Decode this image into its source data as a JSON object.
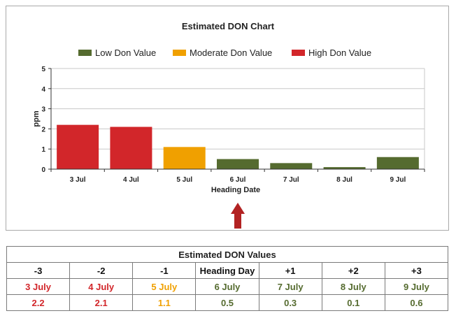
{
  "colors": {
    "low": "#556b2f",
    "moderate": "#f0a000",
    "high": "#d2262a",
    "arrow": "#b22222"
  },
  "chart_data": {
    "type": "bar",
    "title": "Estimated DON Chart",
    "xlabel": "Heading Date",
    "ylabel": "ppm",
    "ylim": [
      0,
      5
    ],
    "yticks": [
      0,
      1,
      2,
      3,
      4,
      5
    ],
    "grid": true,
    "legend_placement": "top-center",
    "legend": [
      {
        "name": "Low Don Value",
        "level": "low"
      },
      {
        "name": "Moderate Don Value",
        "level": "moderate"
      },
      {
        "name": "High Don Value",
        "level": "high"
      }
    ],
    "categories": [
      "3 Jul",
      "4 Jul",
      "5 Jul",
      "6 Jul",
      "7 Jul",
      "8 Jul",
      "9 Jul"
    ],
    "values": [
      2.2,
      2.1,
      1.1,
      0.5,
      0.3,
      0.1,
      0.6
    ],
    "levels": [
      "high",
      "high",
      "moderate",
      "low",
      "low",
      "low",
      "low"
    ],
    "marker_category": "6 Jul",
    "marker_icon": "up-arrow-icon"
  },
  "table": {
    "title": "Estimated DON Values",
    "headers": [
      "-3",
      "-2",
      "-1",
      "Heading Day",
      "+1",
      "+2",
      "+3"
    ],
    "dates": [
      "3 July",
      "4 July",
      "5 July",
      "6 July",
      "7 July",
      "8 July",
      "9 July"
    ],
    "values": [
      "2.2",
      "2.1",
      "1.1",
      "0.5",
      "0.3",
      "0.1",
      "0.6"
    ],
    "levels": [
      "high",
      "high",
      "moderate",
      "low",
      "low",
      "low",
      "low"
    ]
  }
}
